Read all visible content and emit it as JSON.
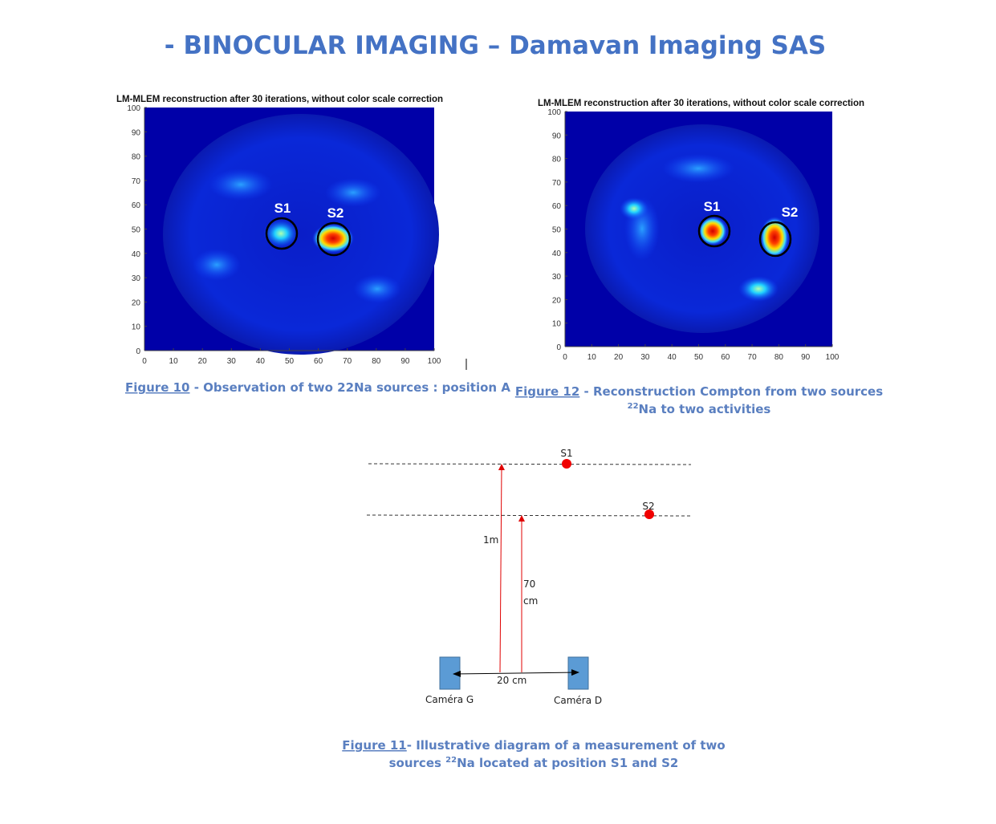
{
  "title": "- BINOCULAR IMAGING – Damavan Imaging SAS",
  "figures": [
    {
      "plot_title": "LM-MLEM reconstruction after 30 iterations, without color scale correction",
      "xlim": [
        0,
        100
      ],
      "ylim": [
        0,
        100
      ],
      "xticks": [
        0,
        10,
        20,
        30,
        40,
        50,
        60,
        70,
        80,
        90,
        100
      ],
      "yticks": [
        0,
        10,
        20,
        30,
        40,
        50,
        60,
        70,
        80,
        90,
        100
      ],
      "source_labels": [
        "S1",
        "S2"
      ],
      "caption_ref": "Figure 10",
      "caption": " - Observation of two 22Na sources : position A"
    },
    {
      "plot_title": "LM-MLEM reconstruction after 30 iterations, without color scale correction",
      "xlim": [
        0,
        100
      ],
      "ylim": [
        0,
        100
      ],
      "xticks": [
        0,
        10,
        20,
        30,
        40,
        50,
        60,
        70,
        80,
        90,
        100
      ],
      "yticks": [
        0,
        10,
        20,
        30,
        40,
        50,
        60,
        70,
        80,
        90,
        100
      ],
      "source_labels": [
        "S1",
        "S2"
      ],
      "caption_ref": "Figure 12",
      "caption": " - Reconstruction Compton from two sources",
      "caption_sup": "22",
      "caption_line2": "Na to two activities"
    }
  ],
  "diagram": {
    "source_labels": [
      "S1",
      "S2"
    ],
    "distance_1": "1m",
    "distance_2": [
      "70",
      "cm"
    ],
    "baseline": "20 cm",
    "cameras": [
      "Caméra G",
      "Caméra D"
    ],
    "caption_ref": "Figure 11",
    "caption": "- Illustrative diagram of a measurement of two",
    "caption_line2a": "sources ",
    "caption_sup": "22",
    "caption_line2b": "Na located at position S1 and S2"
  }
}
